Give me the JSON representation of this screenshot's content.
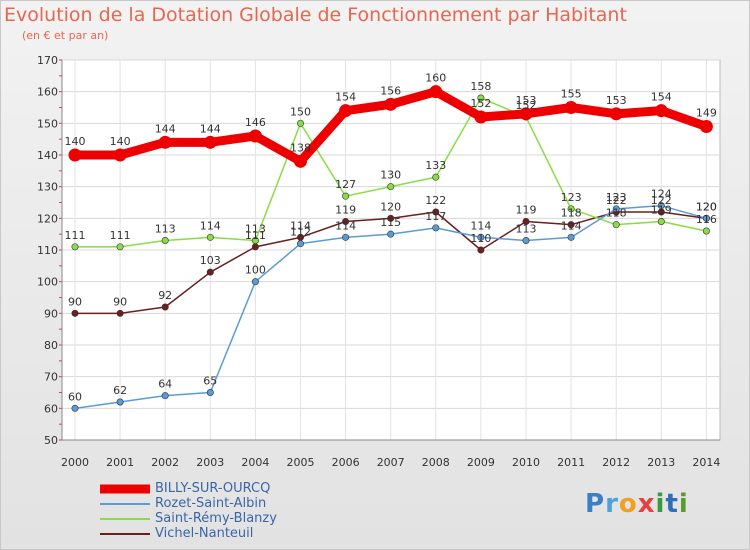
{
  "chart_data": {
    "type": "line",
    "title": "Evolution de la Dotation Globale de Fonctionnement par Habitant",
    "subtitle": "(en € et par an)",
    "x": [
      "2000",
      "2001",
      "2002",
      "2003",
      "2004",
      "2005",
      "2006",
      "2007",
      "2008",
      "2009",
      "2010",
      "2011",
      "2012",
      "2013",
      "2014"
    ],
    "ylim": [
      50,
      170
    ],
    "yticks": [
      50,
      60,
      70,
      80,
      90,
      100,
      110,
      120,
      130,
      140,
      150,
      160,
      170
    ],
    "grid": true,
    "series": [
      {
        "name": "BILLY-SUR-OURCQ",
        "color": "#ee0000",
        "values": [
          140,
          140,
          144,
          144,
          146,
          138,
          154,
          156,
          160,
          152,
          153,
          155,
          153,
          154,
          149
        ]
      },
      {
        "name": "Rozet-Saint-Albin",
        "color": "#5b9bd5",
        "values": [
          60,
          62,
          64,
          65,
          100,
          112,
          114,
          115,
          117,
          114,
          113,
          114,
          123,
          124,
          120
        ]
      },
      {
        "name": "Saint-Rémy-Blanzy",
        "color": "#88dd44",
        "values": [
          111,
          111,
          113,
          114,
          113,
          150,
          127,
          130,
          133,
          158,
          152,
          123,
          118,
          119,
          116
        ]
      },
      {
        "name": "Vichel-Nanteuil",
        "color": "#6b1f1f",
        "values": [
          90,
          90,
          92,
          103,
          111,
          114,
          119,
          120,
          122,
          110,
          119,
          118,
          122,
          122,
          120
        ]
      }
    ]
  },
  "legend": {
    "items": [
      "BILLY-SUR-OURCQ",
      "Rozet-Saint-Albin",
      "Saint-Rémy-Blanzy",
      "Vichel-Nanteuil"
    ]
  },
  "logo": {
    "text": "Proxiti"
  }
}
